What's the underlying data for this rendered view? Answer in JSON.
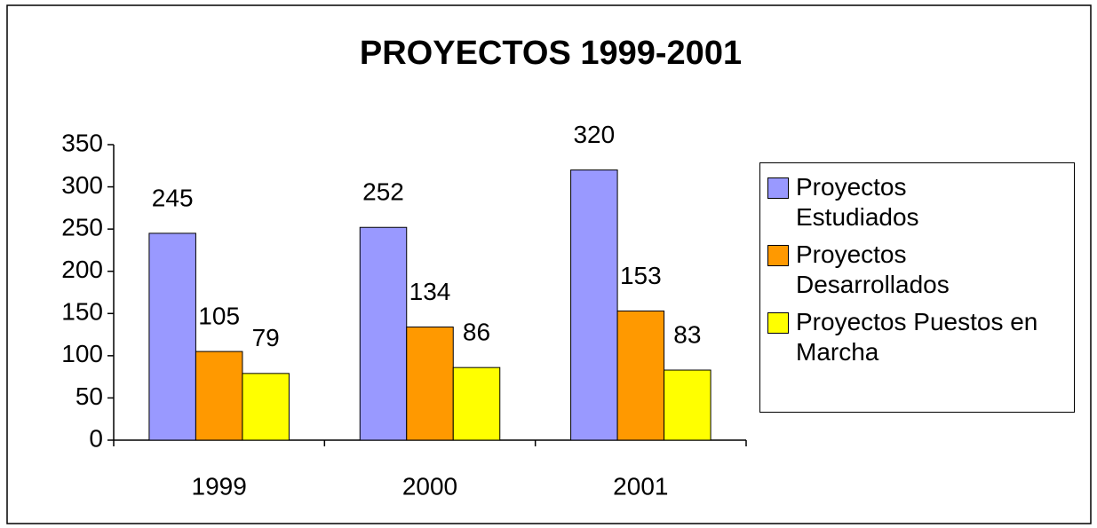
{
  "chart_data": {
    "type": "bar",
    "title": "PROYECTOS 1999-2001",
    "categories": [
      "1999",
      "2000",
      "2001"
    ],
    "series": [
      {
        "name": "Proyectos Estudiados",
        "color": "#9999ff",
        "values": [
          245,
          252,
          320
        ]
      },
      {
        "name": "Proyectos Desarrollados",
        "color": "#ff9900",
        "values": [
          105,
          134,
          153
        ]
      },
      {
        "name": "Proyectos Puestos en Marcha",
        "color": "#ffff00",
        "values": [
          79,
          86,
          83
        ]
      }
    ],
    "ylim": [
      0,
      350
    ],
    "yticks": [
      0,
      50,
      100,
      150,
      200,
      250,
      300,
      350
    ],
    "grid": false,
    "legend": "right"
  }
}
